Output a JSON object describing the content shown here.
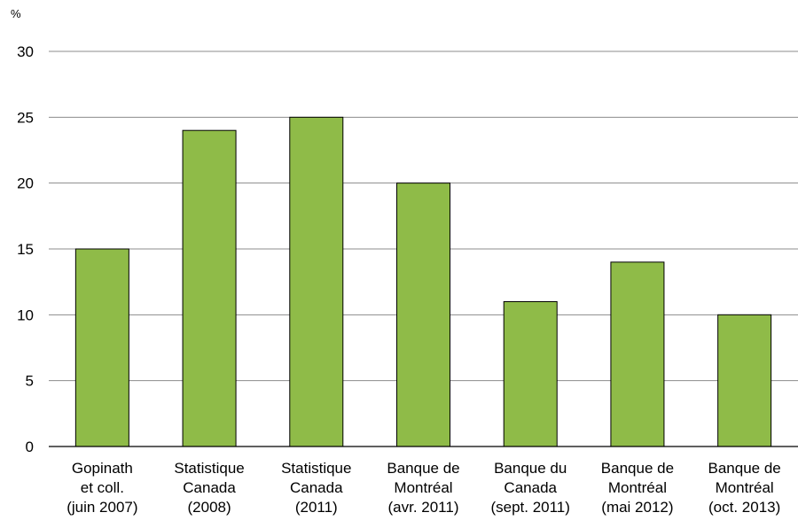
{
  "chart_data": {
    "type": "bar",
    "unit_label": "%",
    "categories": [
      [
        "Gopinath",
        "et coll.",
        "(juin 2007)"
      ],
      [
        "Statistique",
        "Canada",
        "(2008)"
      ],
      [
        "Statistique",
        "Canada",
        "(2011)"
      ],
      [
        "Banque de",
        "Montréal",
        "(avr. 2011)"
      ],
      [
        "Banque du",
        "Canada",
        "(sept. 2011)"
      ],
      [
        "Banque de",
        "Montréal",
        "(mai 2012)"
      ],
      [
        "Banque de",
        "Montréal",
        "(oct. 2013)"
      ]
    ],
    "values": [
      15,
      24,
      25,
      20,
      11,
      14,
      10
    ],
    "ylim": [
      0,
      30
    ],
    "yticks": [
      "0",
      "5",
      "10",
      "15",
      "20",
      "25",
      "30"
    ],
    "grid": true,
    "bar_color": "#8fbb48"
  }
}
